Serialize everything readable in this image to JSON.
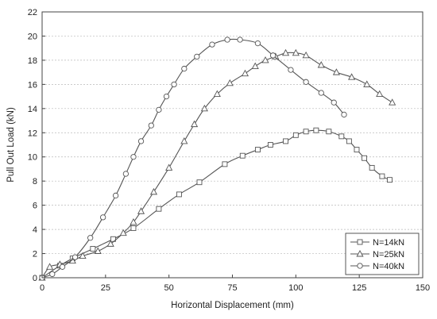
{
  "chart_data": {
    "type": "line",
    "xlabel": "Horizontal Displacement (mm)",
    "ylabel": "Pull Out Load (kN)",
    "xlim": [
      0,
      150
    ],
    "ylim": [
      0,
      22
    ],
    "xticks": [
      0,
      25,
      50,
      75,
      100,
      125,
      150
    ],
    "yticks": [
      0,
      2,
      4,
      6,
      8,
      10,
      12,
      14,
      16,
      18,
      20,
      22
    ],
    "grid": "horizontal-dashed",
    "legend_position": "bottom-right",
    "series": [
      {
        "name": "N=14kN",
        "marker": "square",
        "x": [
          0,
          7,
          12,
          20,
          28,
          36,
          46,
          54,
          62,
          72,
          79,
          85,
          90,
          96,
          100,
          104,
          108,
          113,
          118,
          121,
          124,
          127,
          130,
          134,
          137
        ],
        "y": [
          0,
          1.0,
          1.6,
          2.4,
          3.2,
          4.1,
          5.7,
          6.9,
          7.9,
          9.4,
          10.1,
          10.6,
          11.0,
          11.3,
          11.8,
          12.1,
          12.2,
          12.1,
          11.7,
          11.3,
          10.6,
          9.9,
          9.1,
          8.4,
          8.1
        ]
      },
      {
        "name": "N=25kN",
        "marker": "triangle",
        "x": [
          0,
          3,
          7,
          12,
          16,
          22,
          27,
          32,
          36,
          39,
          44,
          50,
          56,
          60,
          64,
          69,
          74,
          80,
          84,
          88,
          92,
          96,
          100,
          104,
          110,
          116,
          122,
          128,
          133,
          138
        ],
        "y": [
          0,
          0.9,
          1.1,
          1.4,
          1.8,
          2.2,
          2.8,
          3.7,
          4.6,
          5.5,
          7.1,
          9.1,
          11.3,
          12.7,
          14.0,
          15.2,
          16.1,
          16.9,
          17.5,
          18.0,
          18.3,
          18.6,
          18.6,
          18.4,
          17.6,
          17.0,
          16.6,
          16.0,
          15.2,
          14.5
        ]
      },
      {
        "name": "N=40kN",
        "marker": "circle",
        "x": [
          0,
          4,
          8,
          13,
          19,
          24,
          29,
          33,
          36,
          39,
          43,
          46,
          49,
          52,
          56,
          61,
          67,
          73,
          78,
          85,
          91,
          98,
          104,
          110,
          115,
          119
        ],
        "y": [
          0,
          0.3,
          0.9,
          1.7,
          3.3,
          5.0,
          6.8,
          8.6,
          10.0,
          11.3,
          12.6,
          13.9,
          15.0,
          16.0,
          17.3,
          18.3,
          19.3,
          19.7,
          19.7,
          19.4,
          18.4,
          17.2,
          16.2,
          15.3,
          14.5,
          13.5
        ]
      }
    ]
  }
}
